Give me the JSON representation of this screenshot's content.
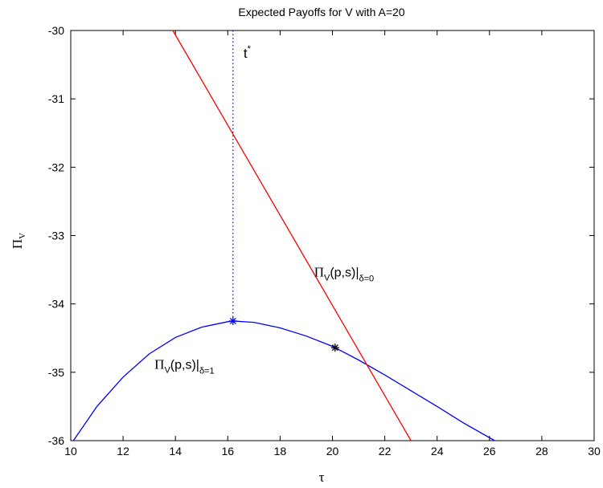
{
  "chart_data": {
    "type": "line",
    "title": "Expected Payoffs for V with A=20",
    "xlabel": "τ",
    "ylabel": "Π",
    "ylabel_sub": "V",
    "xlim": [
      10,
      30
    ],
    "ylim": [
      -36,
      -30
    ],
    "xticks": [
      10,
      12,
      14,
      16,
      18,
      20,
      22,
      24,
      26,
      28,
      30
    ],
    "yticks": [
      -30,
      -31,
      -32,
      -33,
      -34,
      -35,
      -36
    ],
    "grid": false,
    "series": [
      {
        "name": "Π_V(p,s)|δ=1",
        "color": "#0000ff",
        "x": [
          10.1,
          11,
          12,
          13,
          14,
          15,
          16,
          16.2,
          17,
          18,
          19,
          20,
          20.1,
          21,
          22,
          23,
          24,
          25,
          26.2
        ],
        "y": [
          -36,
          -35.5,
          -35.07,
          -34.73,
          -34.49,
          -34.34,
          -34.26,
          -34.25,
          -34.27,
          -34.35,
          -34.47,
          -34.62,
          -34.64,
          -34.82,
          -35.04,
          -35.27,
          -35.5,
          -35.74,
          -36
        ]
      },
      {
        "name": "Π_V(p,s)|δ=0",
        "color": "#ff0000",
        "x": [
          13.9,
          23.0
        ],
        "y": [
          -30,
          -36
        ]
      }
    ],
    "markers": [
      {
        "x": 16.2,
        "y": -34.25,
        "color": "#0000ff",
        "symbol": "*"
      },
      {
        "x": 20.1,
        "y": -34.64,
        "color": "#000000",
        "symbol": "*"
      }
    ],
    "vline": {
      "x": 16.2,
      "color": "#0000ff",
      "style": "dotted"
    },
    "annotations": [
      {
        "id": "tstar",
        "text": "t",
        "sup": "*",
        "x": 16.6,
        "y": -30.4
      },
      {
        "id": "d0",
        "main": "Π",
        "sub1": "V",
        "mid": "(p,s)|",
        "sub2": "δ=0",
        "x": 19.3,
        "y": -33.6
      },
      {
        "id": "d1",
        "main": "Π",
        "sub1": "V",
        "mid": "(p,s)|",
        "sub2": "δ=1",
        "x": 13.2,
        "y": -34.95
      }
    ]
  }
}
